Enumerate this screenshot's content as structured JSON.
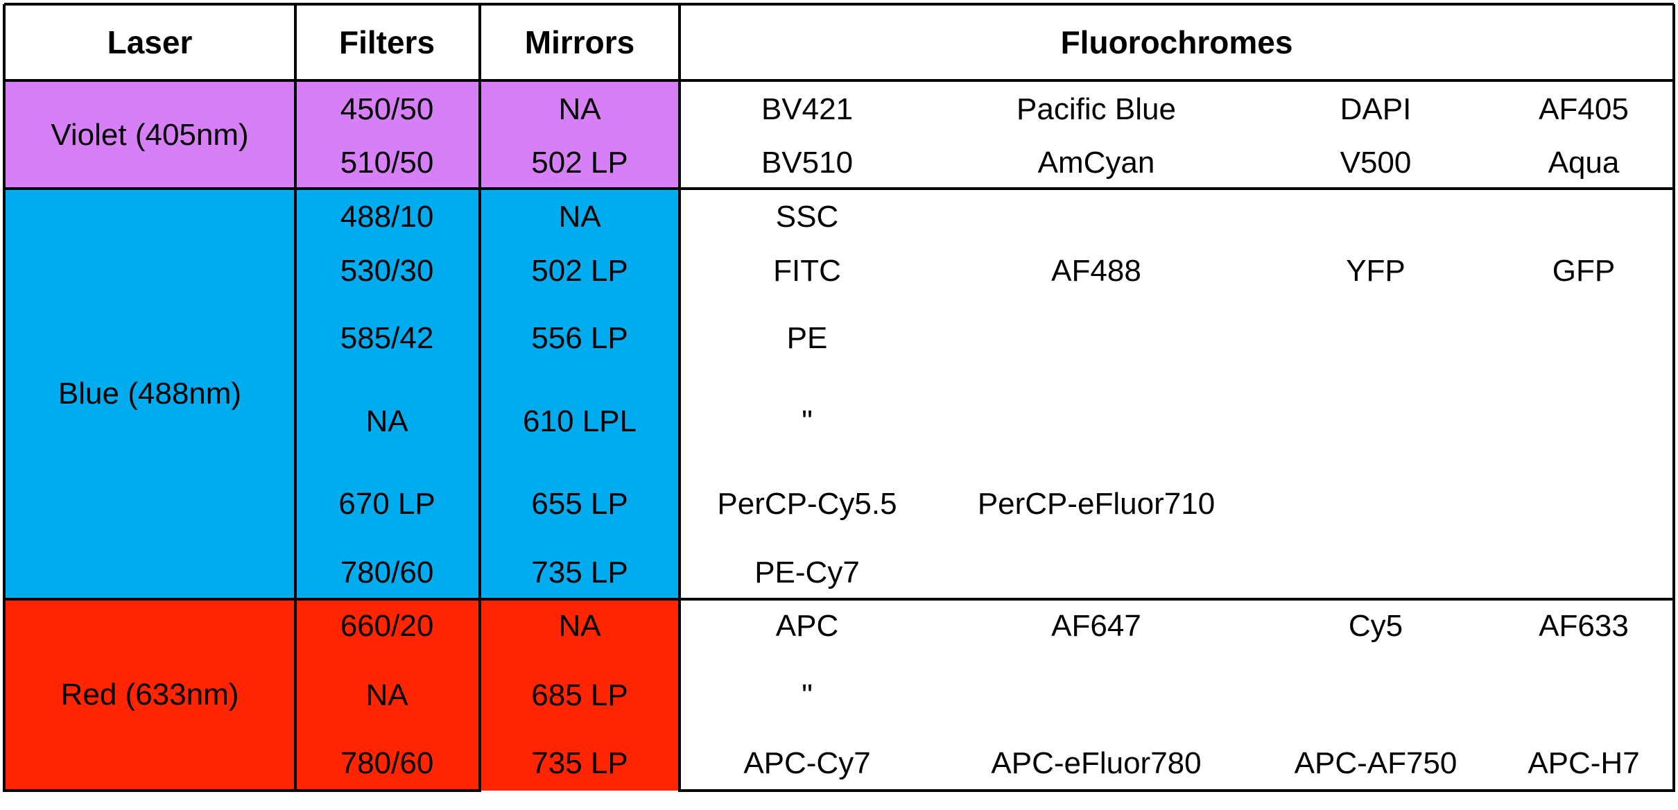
{
  "colors": {
    "violet": "#d67ff6",
    "blue": "#00abee",
    "red": "#ff2500",
    "border": "#000000",
    "background": "#ffffff"
  },
  "headers": {
    "laser": "Laser",
    "filters": "Filters",
    "mirrors": "Mirrors",
    "fluorochromes": "Fluorochromes"
  },
  "groups": [
    {
      "laser": "Violet (405nm)",
      "color": "violet",
      "rows": [
        {
          "filter": "450/50",
          "mirror": "NA",
          "fluorochromes": [
            "BV421",
            "Pacific Blue",
            "DAPI",
            "AF405"
          ]
        },
        {
          "filter": "510/50",
          "mirror": "502 LP",
          "fluorochromes": [
            "BV510",
            "AmCyan",
            "V500",
            "Aqua"
          ]
        }
      ]
    },
    {
      "laser": "Blue (488nm)",
      "color": "blue",
      "rows": [
        {
          "filter": "488/10",
          "mirror": "NA",
          "fluorochromes": [
            "SSC",
            "",
            "",
            ""
          ]
        },
        {
          "filter": "530/30",
          "mirror": "502 LP",
          "fluorochromes": [
            "FITC",
            "AF488",
            "YFP",
            "GFP"
          ]
        },
        {
          "filter": "585/42",
          "mirror": "556 LP",
          "fluorochromes": [
            "PE",
            "",
            "",
            ""
          ]
        },
        {
          "filter": "NA",
          "mirror": "610 LPL",
          "fluorochromes": [
            "\"",
            "",
            "",
            ""
          ]
        },
        {
          "filter": "670 LP",
          "mirror": "655 LP",
          "fluorochromes": [
            "PerCP-Cy5.5",
            "PerCP-eFluor710",
            "",
            ""
          ]
        },
        {
          "filter": "780/60",
          "mirror": "735 LP",
          "fluorochromes": [
            "PE-Cy7",
            "",
            "",
            ""
          ]
        }
      ]
    },
    {
      "laser": "Red (633nm)",
      "color": "red",
      "rows": [
        {
          "filter": "660/20",
          "mirror": "NA",
          "fluorochromes": [
            "APC",
            "AF647",
            "Cy5",
            "AF633"
          ]
        },
        {
          "filter": "NA",
          "mirror": "685 LP",
          "fluorochromes": [
            "\"",
            "",
            "",
            ""
          ]
        },
        {
          "filter": "780/60",
          "mirror": "735 LP",
          "fluorochromes": [
            "APC-Cy7",
            "APC-eFluor780",
            "APC-AF750",
            "APC-H7"
          ]
        }
      ]
    }
  ]
}
